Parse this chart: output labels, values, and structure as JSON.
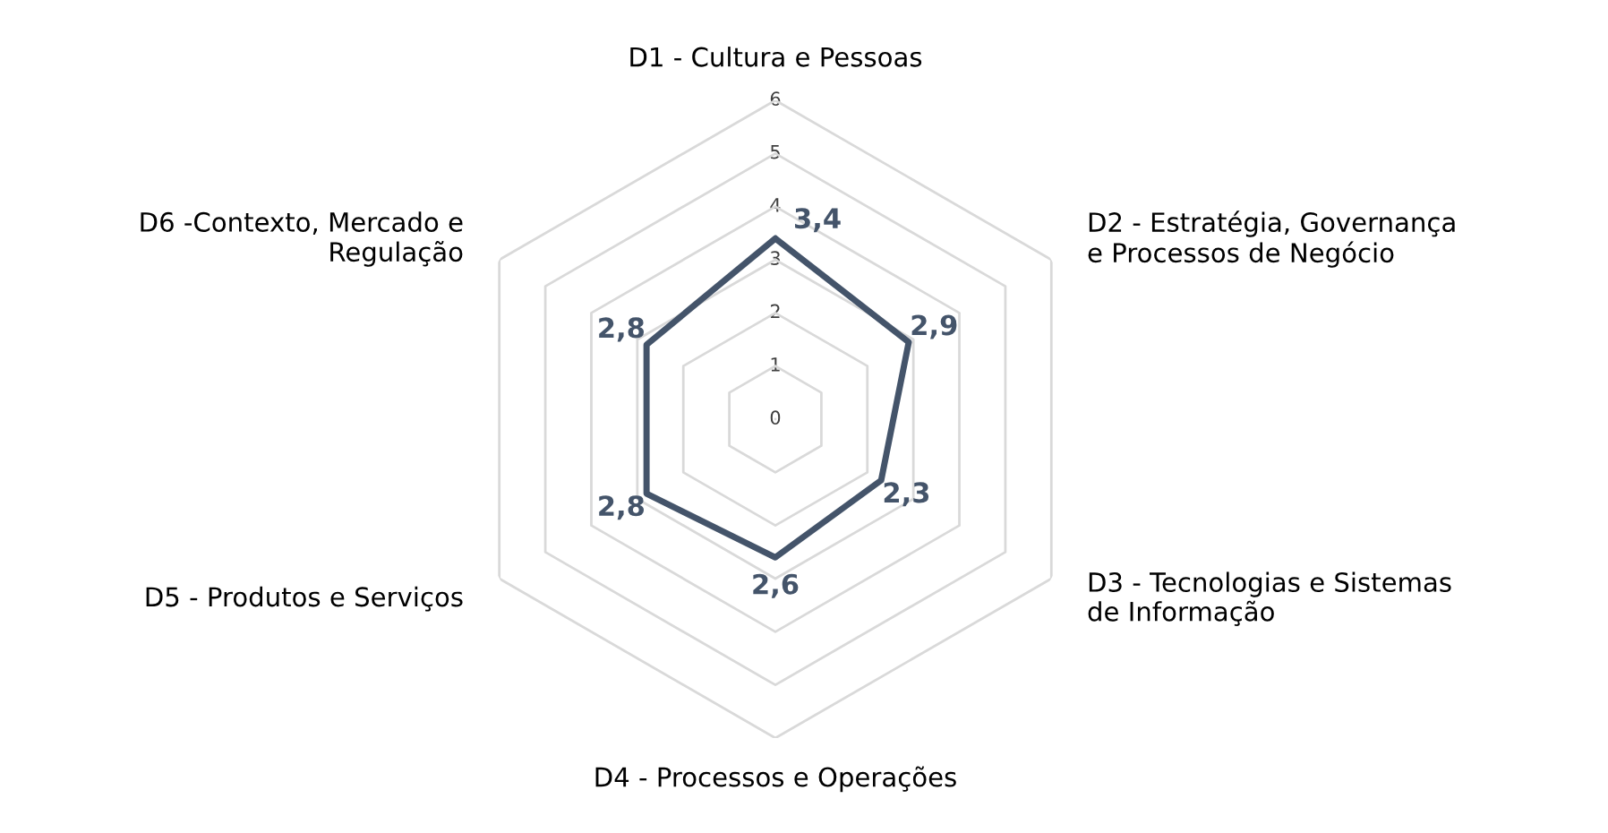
{
  "chart_data": {
    "type": "radar",
    "categories": [
      "D1 - Cultura e Pessoas",
      "D2 - Estratégia, Governança\ne Processos de Negócio",
      "D3 - Tecnologias e Sistemas\nde Informação",
      "D4 - Processos e Operações",
      "D5 - Produtos e Serviços",
      "D6 -Contexto, Mercado e\nRegulação"
    ],
    "series": [
      {
        "color": "#44546a",
        "values": [
          3.4,
          2.9,
          2.3,
          2.6,
          2.8,
          2.8
        ],
        "value_labels": [
          "3,4",
          "2,9",
          "2,3",
          "2,6",
          "2,8",
          "2,8"
        ]
      }
    ],
    "ylim": [
      0,
      6
    ],
    "yticks": [
      0,
      1,
      2,
      3,
      4,
      5,
      6
    ],
    "grid": true,
    "legend": false,
    "marker": "none",
    "line_style": "solid"
  }
}
